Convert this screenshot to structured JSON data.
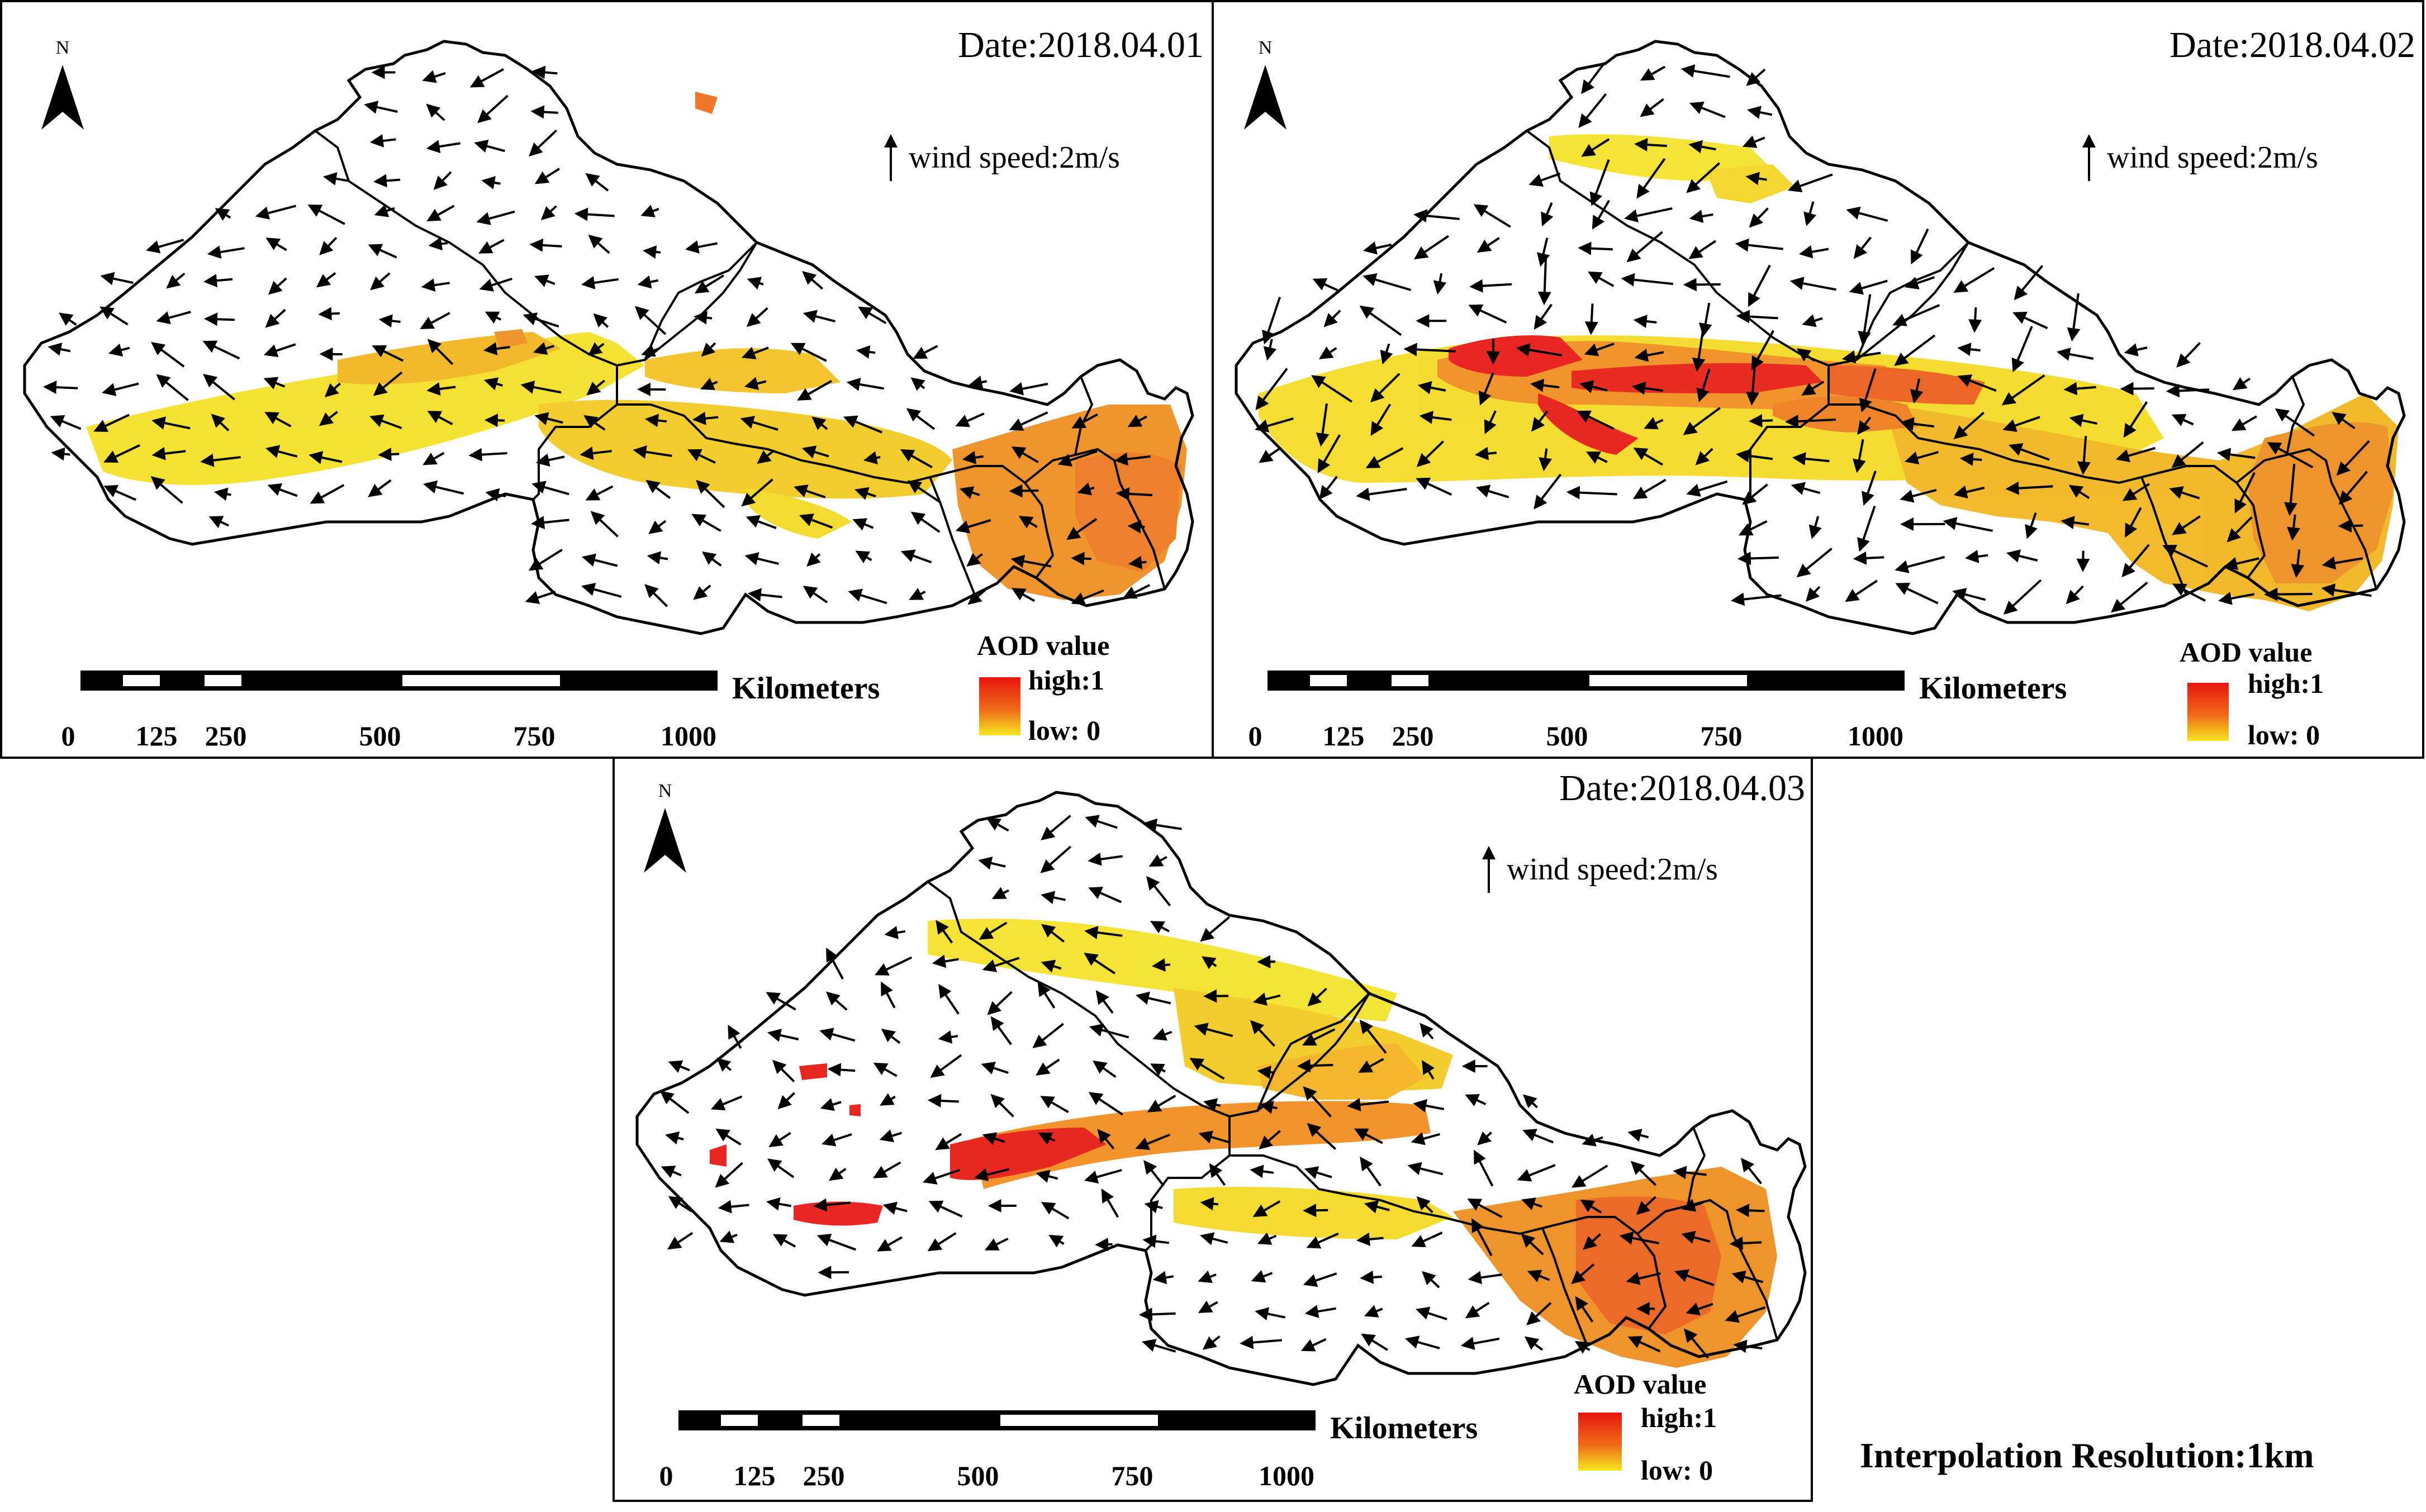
{
  "figure": {
    "footnote": "Interpolation Resolution:1km",
    "colors": {
      "aod_high": "#e8150f",
      "aod_mid": "#f07a18",
      "aod_low": "#f3e41c",
      "boundary": "#000000",
      "background": "#ffffff"
    },
    "icons": [
      "north-arrow-icon",
      "wind-arrow-icon",
      "aod-color-ramp"
    ]
  },
  "panels": [
    {
      "id": "p1",
      "date": "Date:2018.04.01",
      "north": "N",
      "wind_legend": "wind speed:2m/s",
      "aod_title": "AOD value",
      "aod_high": "high:1",
      "aod_low": "low: 0",
      "scale_unit": "Kilometers",
      "scale_ticks": [
        "0",
        "125",
        "250",
        "500",
        "750",
        "1000"
      ],
      "aod_level": "moderate"
    },
    {
      "id": "p2",
      "date": "Date:2018.04.02",
      "north": "N",
      "wind_legend": "wind speed:2m/s",
      "aod_title": "AOD value",
      "aod_high": "high:1",
      "aod_low": "low: 0",
      "scale_unit": "Kilometers",
      "scale_ticks": [
        "0",
        "125",
        "250",
        "500",
        "750",
        "1000"
      ],
      "aod_level": "high"
    },
    {
      "id": "p3",
      "date": "Date:2018.04.03",
      "north": "N",
      "wind_legend": "wind speed:2m/s",
      "aod_title": "AOD value",
      "aod_high": "high:1",
      "aod_low": "low: 0",
      "scale_unit": "Kilometers",
      "scale_ticks": [
        "0",
        "125",
        "250",
        "500",
        "750",
        "1000"
      ],
      "aod_level": "high"
    }
  ]
}
